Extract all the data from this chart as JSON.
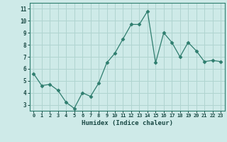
{
  "x": [
    0,
    1,
    2,
    3,
    4,
    5,
    6,
    7,
    8,
    9,
    10,
    11,
    12,
    13,
    14,
    15,
    16,
    17,
    18,
    19,
    20,
    21,
    22,
    23
  ],
  "y": [
    5.6,
    4.6,
    4.7,
    4.2,
    3.2,
    2.7,
    4.0,
    3.7,
    4.8,
    6.5,
    7.3,
    8.5,
    9.7,
    9.7,
    10.8,
    6.5,
    9.0,
    8.2,
    7.0,
    8.2,
    7.5,
    6.6,
    6.7,
    6.6
  ],
  "line_color": "#2e7d6e",
  "marker": "D",
  "marker_size": 2.5,
  "bg_color": "#ceeae8",
  "grid_color": "#b0d4d0",
  "xlabel": "Humidex (Indice chaleur)",
  "xlim": [
    -0.5,
    23.5
  ],
  "ylim": [
    2.5,
    11.5
  ],
  "yticks": [
    3,
    4,
    5,
    6,
    7,
    8,
    9,
    10,
    11
  ],
  "xticks": [
    0,
    1,
    2,
    3,
    4,
    5,
    6,
    7,
    8,
    9,
    10,
    11,
    12,
    13,
    14,
    15,
    16,
    17,
    18,
    19,
    20,
    21,
    22,
    23
  ],
  "xtick_labels": [
    "0",
    "1",
    "2",
    "3",
    "4",
    "5",
    "6",
    "7",
    "8",
    "9",
    "10",
    "11",
    "12",
    "13",
    "14",
    "15",
    "16",
    "17",
    "18",
    "19",
    "20",
    "21",
    "22",
    "23"
  ],
  "font_color": "#1a4a45",
  "axis_color": "#2e7d6e"
}
